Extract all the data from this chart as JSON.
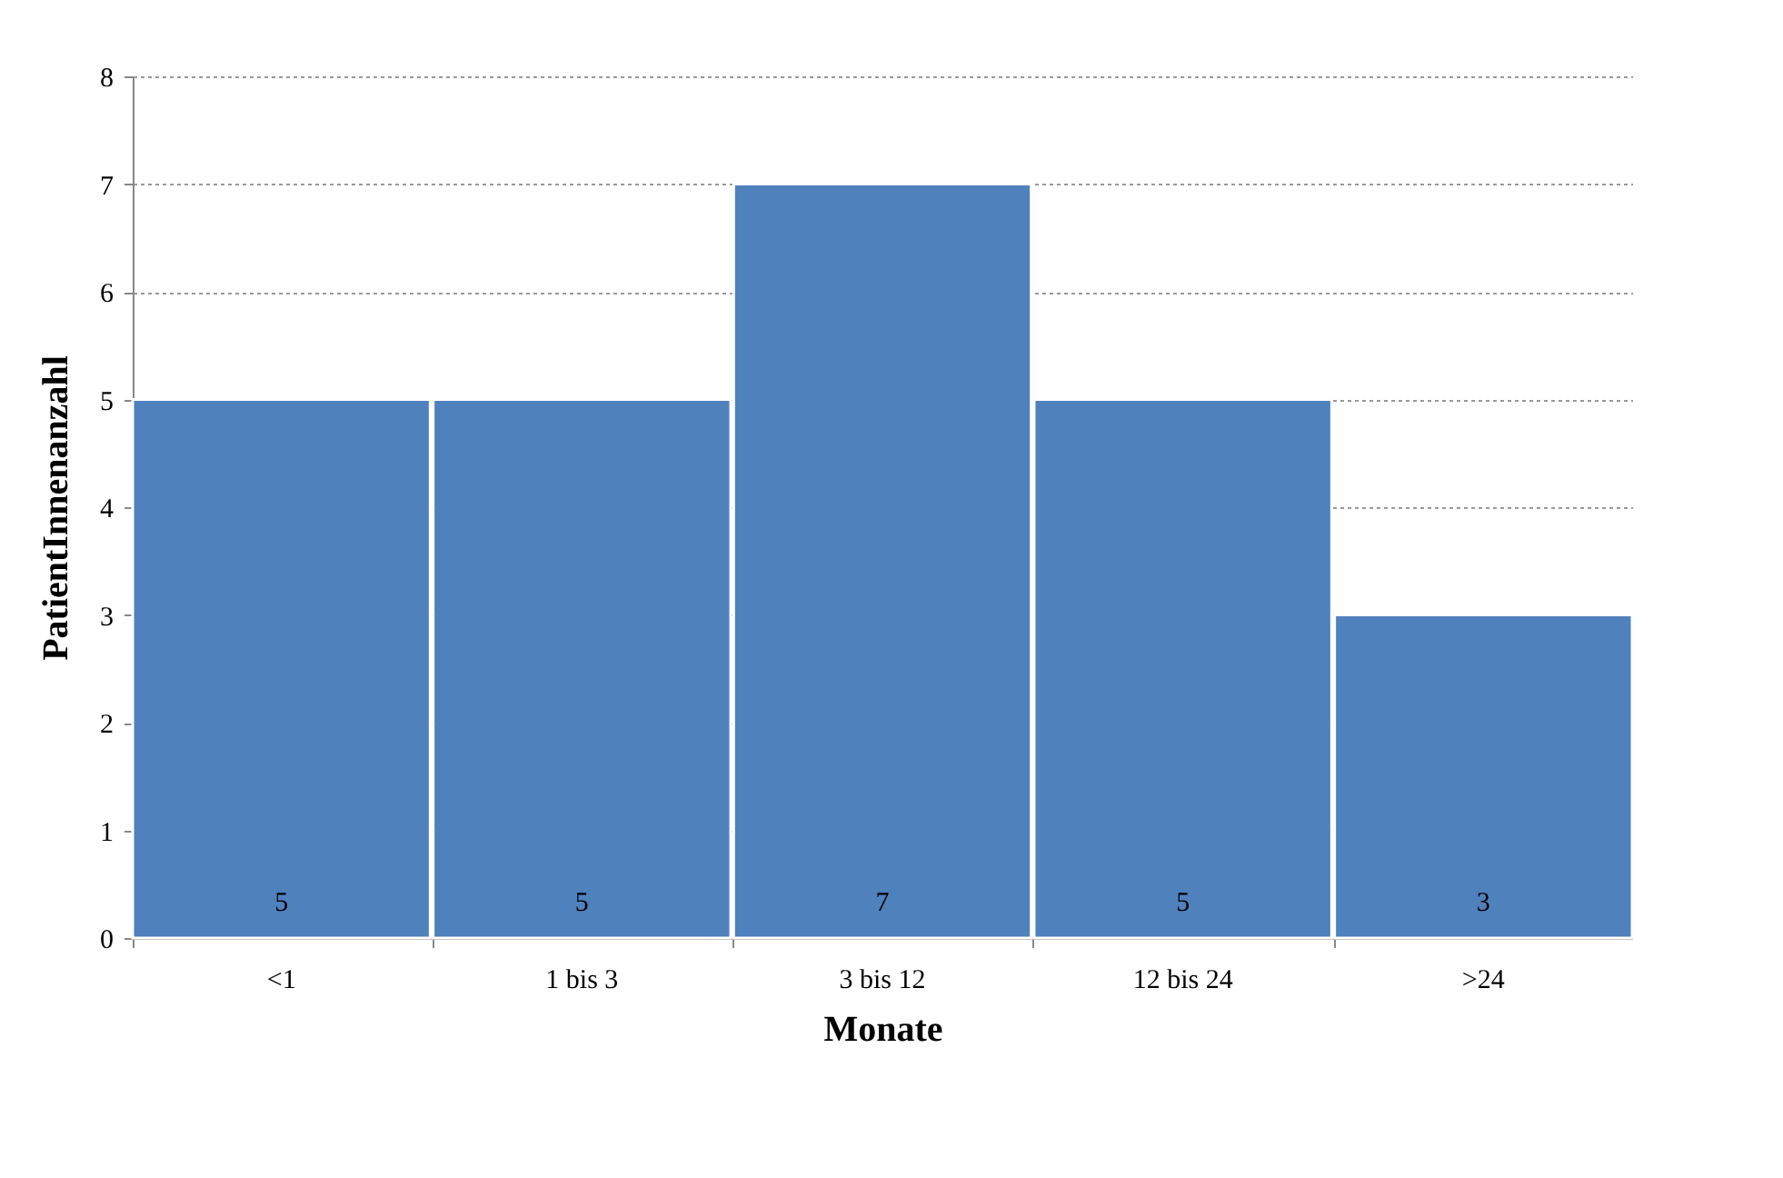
{
  "chart_data": {
    "type": "bar",
    "xlabel": "Monate",
    "ylabel": "PatientInnenanzahl",
    "categories": [
      "<1",
      "1 bis 3",
      "3 bis 12",
      "12 bis 24",
      ">24"
    ],
    "values": [
      5,
      5,
      7,
      5,
      3
    ],
    "color": "#4f81bd",
    "ylim": [
      0,
      8
    ],
    "yticks": [
      0,
      1,
      2,
      3,
      4,
      5,
      6,
      7,
      8
    ],
    "grid": "y",
    "data_labels": true
  }
}
